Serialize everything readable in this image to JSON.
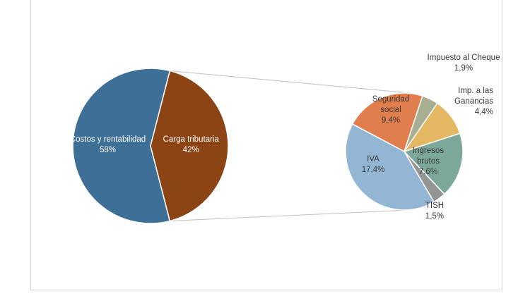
{
  "chart_data": {
    "type": "pie-of-pie",
    "main_pie": {
      "slices": [
        {
          "label": "Costos y rentabilidad",
          "value_label": "58%",
          "value": 58,
          "color": "#3E6F96",
          "text_color": "#ffffff"
        },
        {
          "label": "Carga tributaria",
          "value_label": "42%",
          "value": 42,
          "color": "#8C4415",
          "text_color": "#ffffff"
        }
      ]
    },
    "secondary_pie": {
      "expands": "Carga tributaria",
      "slices": [
        {
          "label": "Seguridad social",
          "value_label": "9,4%",
          "value": 9.4,
          "color": "#E07E4E",
          "text_color": "#3a3a3a",
          "label_position": "inside"
        },
        {
          "label": "Impuesto al Cheque",
          "value_label": "1,9%",
          "value": 1.9,
          "color": "#A8AE92",
          "text_color": "#3a3a3a",
          "label_position": "outside"
        },
        {
          "label": "Imp. a las Ganancias",
          "value_label": "4,4%",
          "value": 4.4,
          "color": "#E4B863",
          "text_color": "#3a3a3a",
          "label_position": "outside"
        },
        {
          "label": "Ingresos brutos",
          "value_label": "7,6%",
          "value": 7.6,
          "color": "#7BA89A",
          "text_color": "#3a3a3a",
          "label_position": "inside"
        },
        {
          "label": "TISH",
          "value_label": "1,5%",
          "value": 1.5,
          "color": "#959595",
          "text_color": "#3a3a3a",
          "label_position": "outside"
        },
        {
          "label": "IVA",
          "value_label": "17,4%",
          "value": 17.4,
          "color": "#94B6D5",
          "text_color": "#3a3a3a",
          "label_position": "inside"
        }
      ]
    },
    "connector_color": "#bfbfbf",
    "legend": "none"
  }
}
